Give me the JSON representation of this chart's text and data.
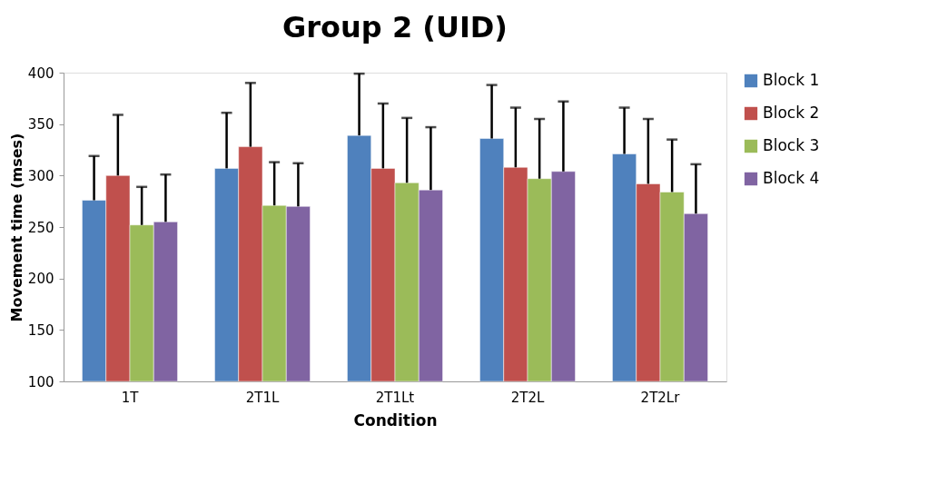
{
  "chart_data": {
    "type": "bar",
    "title": "Group 2 (UID)",
    "xlabel": "Condition",
    "ylabel": "Movement time (mses)",
    "categories": [
      "1T",
      "2T1L",
      "2T1Lt",
      "2T2L",
      "2T2Lr"
    ],
    "series": [
      {
        "name": "Block 1",
        "color": "#4f81bd",
        "values": [
          276,
          307,
          339,
          336,
          321
        ],
        "errors": [
          [
            276,
            319
          ],
          [
            307,
            361
          ],
          [
            339,
            399
          ],
          [
            336,
            388
          ],
          [
            321,
            366
          ]
        ]
      },
      {
        "name": "Block 2",
        "color": "#c0504d",
        "values": [
          300,
          328,
          307,
          308,
          292
        ],
        "errors": [
          [
            300,
            359
          ],
          [
            328,
            390
          ],
          [
            307,
            370
          ],
          [
            308,
            366
          ],
          [
            292,
            355
          ]
        ]
      },
      {
        "name": "Block 3",
        "color": "#9bbb59",
        "values": [
          252,
          271,
          293,
          297,
          284
        ],
        "errors": [
          [
            252,
            289
          ],
          [
            271,
            313
          ],
          [
            293,
            356
          ],
          [
            297,
            355
          ],
          [
            284,
            335
          ]
        ]
      },
      {
        "name": "Block 4",
        "color": "#8064a2",
        "values": [
          255,
          270,
          286,
          304,
          263
        ],
        "errors": [
          [
            255,
            301
          ],
          [
            270,
            312
          ],
          [
            286,
            347
          ],
          [
            304,
            372
          ],
          [
            263,
            311
          ]
        ]
      }
    ],
    "ylim": [
      100,
      400
    ],
    "yticks": [
      100,
      150,
      200,
      250,
      300,
      350,
      400
    ],
    "grid": false,
    "legend": "right"
  }
}
